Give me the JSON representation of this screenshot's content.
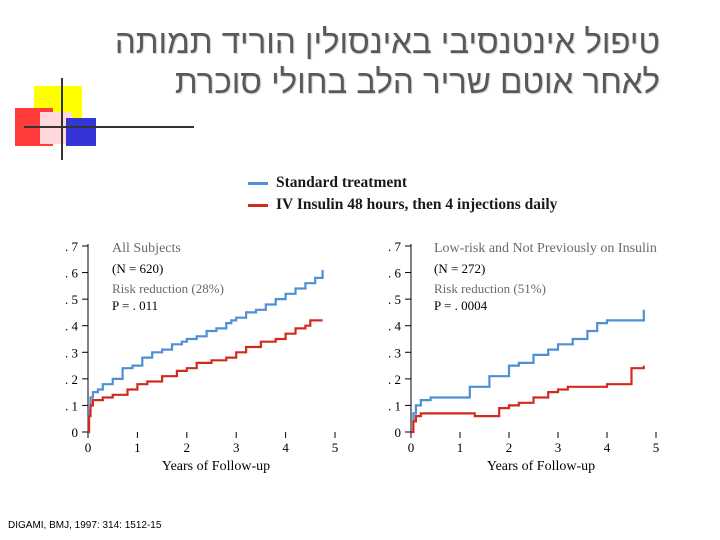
{
  "title_lines": [
    "טיפול אינטנסיבי באינסולין הוריד תמותה",
    "לאחר אוטם שריר הלב בחולי סוכרת"
  ],
  "legend": [
    {
      "label": "Standard treatment",
      "color": "#4f8fd6"
    },
    {
      "label": "IV Insulin 48 hours, then 4  injections daily",
      "color": "#d42a1e"
    }
  ],
  "source": "DIGAMI, BMJ, 1997: 314: 1512-15",
  "chart_data": [
    {
      "type": "line",
      "title": "All Subjects",
      "annotations": [
        "(N = 620)",
        "Risk reduction (28%)",
        "P = . 011"
      ],
      "xlabel": "Years of Follow-up",
      "ylabel": "",
      "xlim": [
        0,
        5
      ],
      "ylim": [
        0,
        0.7
      ],
      "x_ticks": [
        "0",
        "1",
        "2",
        "3",
        "4",
        "5"
      ],
      "y_ticks": [
        "0",
        ". 1",
        ". 2",
        ". 3",
        ". 4",
        ". 5",
        ". 6",
        ". 7"
      ],
      "grid": false,
      "series": [
        {
          "name": "Standard treatment",
          "color": "#4f8fd6",
          "points": [
            [
              0,
              0
            ],
            [
              0.02,
              0.08
            ],
            [
              0.05,
              0.13
            ],
            [
              0.1,
              0.15
            ],
            [
              0.2,
              0.16
            ],
            [
              0.3,
              0.18
            ],
            [
              0.5,
              0.2
            ],
            [
              0.7,
              0.24
            ],
            [
              0.9,
              0.25
            ],
            [
              1.1,
              0.28
            ],
            [
              1.3,
              0.3
            ],
            [
              1.5,
              0.31
            ],
            [
              1.7,
              0.33
            ],
            [
              1.9,
              0.34
            ],
            [
              2.0,
              0.35
            ],
            [
              2.2,
              0.36
            ],
            [
              2.4,
              0.38
            ],
            [
              2.6,
              0.39
            ],
            [
              2.8,
              0.41
            ],
            [
              2.9,
              0.42
            ],
            [
              3.0,
              0.43
            ],
            [
              3.2,
              0.45
            ],
            [
              3.4,
              0.46
            ],
            [
              3.6,
              0.48
            ],
            [
              3.8,
              0.5
            ],
            [
              4.0,
              0.52
            ],
            [
              4.2,
              0.54
            ],
            [
              4.4,
              0.56
            ],
            [
              4.6,
              0.58
            ],
            [
              4.75,
              0.61
            ]
          ]
        },
        {
          "name": "IV Insulin 48 hours, then 4  injections daily",
          "color": "#d42a1e",
          "points": [
            [
              0,
              0
            ],
            [
              0.02,
              0.06
            ],
            [
              0.05,
              0.1
            ],
            [
              0.1,
              0.12
            ],
            [
              0.3,
              0.13
            ],
            [
              0.5,
              0.14
            ],
            [
              0.8,
              0.16
            ],
            [
              1.0,
              0.18
            ],
            [
              1.2,
              0.19
            ],
            [
              1.5,
              0.21
            ],
            [
              1.8,
              0.23
            ],
            [
              2.0,
              0.24
            ],
            [
              2.2,
              0.26
            ],
            [
              2.5,
              0.27
            ],
            [
              2.8,
              0.28
            ],
            [
              3.0,
              0.3
            ],
            [
              3.2,
              0.32
            ],
            [
              3.5,
              0.34
            ],
            [
              3.8,
              0.35
            ],
            [
              4.0,
              0.37
            ],
            [
              4.2,
              0.39
            ],
            [
              4.4,
              0.4
            ],
            [
              4.5,
              0.42
            ],
            [
              4.75,
              0.42
            ]
          ]
        }
      ]
    },
    {
      "type": "line",
      "title": "Low-risk and Not Previously on Insulin",
      "annotations": [
        "(N = 272)",
        "Risk reduction (51%)",
        "P = . 0004"
      ],
      "xlabel": "Years of Follow-up",
      "ylabel": "",
      "xlim": [
        0,
        5
      ],
      "ylim": [
        0,
        0.7
      ],
      "x_ticks": [
        "0",
        "1",
        "2",
        "3",
        "4",
        "5"
      ],
      "y_ticks": [
        "0",
        ". 1",
        ". 2",
        ". 3",
        ". 4",
        ". 5",
        ". 6",
        ". 7"
      ],
      "grid": false,
      "series": [
        {
          "name": "Standard treatment",
          "color": "#4f8fd6",
          "points": [
            [
              0,
              0
            ],
            [
              0.05,
              0.07
            ],
            [
              0.1,
              0.1
            ],
            [
              0.2,
              0.12
            ],
            [
              0.4,
              0.13
            ],
            [
              0.9,
              0.13
            ],
            [
              1.2,
              0.17
            ],
            [
              1.6,
              0.21
            ],
            [
              2.0,
              0.25
            ],
            [
              2.2,
              0.26
            ],
            [
              2.5,
              0.29
            ],
            [
              2.8,
              0.31
            ],
            [
              3.0,
              0.33
            ],
            [
              3.3,
              0.35
            ],
            [
              3.6,
              0.38
            ],
            [
              3.8,
              0.41
            ],
            [
              4.0,
              0.42
            ],
            [
              4.2,
              0.42
            ],
            [
              4.6,
              0.42
            ],
            [
              4.75,
              0.46
            ]
          ]
        },
        {
          "name": "IV Insulin 48 hours, then 4  injections daily",
          "color": "#d42a1e",
          "points": [
            [
              0,
              0
            ],
            [
              0.05,
              0.04
            ],
            [
              0.1,
              0.06
            ],
            [
              0.2,
              0.07
            ],
            [
              0.5,
              0.07
            ],
            [
              1.0,
              0.07
            ],
            [
              1.3,
              0.06
            ],
            [
              1.8,
              0.09
            ],
            [
              2.0,
              0.1
            ],
            [
              2.2,
              0.11
            ],
            [
              2.5,
              0.13
            ],
            [
              2.8,
              0.15
            ],
            [
              3.0,
              0.16
            ],
            [
              3.2,
              0.17
            ],
            [
              3.5,
              0.17
            ],
            [
              4.0,
              0.18
            ],
            [
              4.3,
              0.18
            ],
            [
              4.5,
              0.24
            ],
            [
              4.75,
              0.25
            ]
          ]
        }
      ]
    }
  ]
}
